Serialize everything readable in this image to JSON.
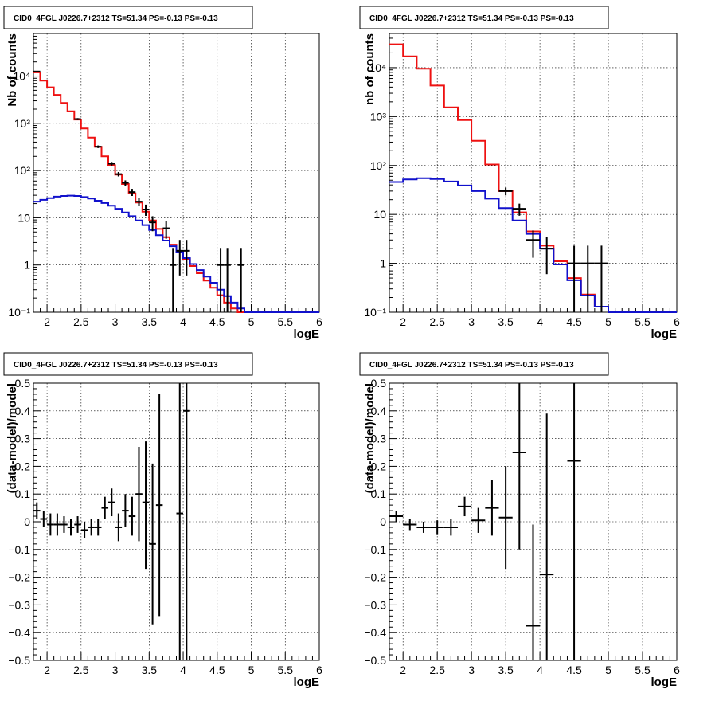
{
  "chart_data": [
    {
      "type": "histogram",
      "title": "CID0_4FGL J0226.7+2312 TS=51.34 PS=-0.13 PS=-0.13",
      "xlabel": "logE",
      "ylabel": "Nb of counts",
      "xlim": [
        1.8,
        6.0
      ],
      "ylim": [
        0.1,
        80000
      ],
      "yscale": "log",
      "grid": true,
      "x_ticks": [
        "2",
        "2.5",
        "3",
        "3.5",
        "4",
        "4.5",
        "5",
        "5.5",
        "6"
      ],
      "y_ticks": [
        "10⁻¹",
        "1",
        "10",
        "10²",
        "10³",
        "10⁴"
      ],
      "series": [
        {
          "color": "#ee1111",
          "style": "step",
          "bins": [
            [
              1.8,
              12000
            ],
            [
              1.9,
              8000
            ],
            [
              2.0,
              5800
            ],
            [
              2.1,
              4000
            ],
            [
              2.2,
              2700
            ],
            [
              2.3,
              1800
            ],
            [
              2.4,
              1200
            ],
            [
              2.5,
              780
            ],
            [
              2.6,
              500
            ],
            [
              2.7,
              320
            ],
            [
              2.8,
              200
            ],
            [
              2.9,
              130
            ],
            [
              3.0,
              82
            ],
            [
              3.1,
              52
            ],
            [
              3.2,
              33
            ],
            [
              3.3,
              21
            ],
            [
              3.4,
              13.5
            ],
            [
              3.5,
              8.8
            ],
            [
              3.6,
              5.8
            ],
            [
              3.7,
              3.9
            ],
            [
              3.8,
              2.7
            ],
            [
              3.9,
              1.9
            ],
            [
              4.0,
              1.35
            ],
            [
              4.1,
              0.95
            ],
            [
              4.2,
              0.67
            ],
            [
              4.3,
              0.47
            ],
            [
              4.4,
              0.33
            ],
            [
              4.5,
              0.23
            ],
            [
              4.6,
              0.16
            ],
            [
              4.7,
              0.12
            ],
            [
              4.8,
              0.1
            ],
            [
              4.9,
              0.1
            ],
            [
              6.0,
              0.1
            ]
          ]
        },
        {
          "color": "#1111cc",
          "style": "step",
          "bins": [
            [
              1.8,
              22
            ],
            [
              1.9,
              24
            ],
            [
              2.0,
              26
            ],
            [
              2.1,
              28
            ],
            [
              2.2,
              29
            ],
            [
              2.3,
              29.5
            ],
            [
              2.4,
              29
            ],
            [
              2.5,
              27.5
            ],
            [
              2.6,
              25.5
            ],
            [
              2.7,
              23
            ],
            [
              2.8,
              20.5
            ],
            [
              2.9,
              18
            ],
            [
              3.0,
              15.5
            ],
            [
              3.1,
              13
            ],
            [
              3.2,
              10.8
            ],
            [
              3.3,
              8.8
            ],
            [
              3.4,
              7
            ],
            [
              3.5,
              5.5
            ],
            [
              3.6,
              4.3
            ],
            [
              3.7,
              3.3
            ],
            [
              3.8,
              2.5
            ],
            [
              3.9,
              1.9
            ],
            [
              4.0,
              1.4
            ],
            [
              4.1,
              1.05
            ],
            [
              4.2,
              0.78
            ],
            [
              4.3,
              0.57
            ],
            [
              4.4,
              0.42
            ],
            [
              4.5,
              0.3
            ],
            [
              4.6,
              0.22
            ],
            [
              4.7,
              0.16
            ],
            [
              4.8,
              0.12
            ],
            [
              4.9,
              0.1
            ],
            [
              6.0,
              0.1
            ]
          ]
        },
        {
          "color": "#000000",
          "style": "points",
          "points": [
            {
              "x": 1.85,
              "y": 12500,
              "xerr": 0.05,
              "ylo": 12300,
              "yhi": 12700
            },
            {
              "x": 2.45,
              "y": 1230,
              "xerr": 0.05,
              "ylo": 1170,
              "yhi": 1290
            },
            {
              "x": 2.75,
              "y": 320,
              "xerr": 0.05,
              "ylo": 300,
              "yhi": 340
            },
            {
              "x": 2.95,
              "y": 140,
              "xerr": 0.05,
              "ylo": 128,
              "yhi": 152
            },
            {
              "x": 3.05,
              "y": 84,
              "xerr": 0.05,
              "ylo": 75,
              "yhi": 93
            },
            {
              "x": 3.15,
              "y": 55,
              "xerr": 0.05,
              "ylo": 48,
              "yhi": 62
            },
            {
              "x": 3.25,
              "y": 35,
              "xerr": 0.05,
              "ylo": 29,
              "yhi": 41
            },
            {
              "x": 3.35,
              "y": 22,
              "xerr": 0.05,
              "ylo": 17.5,
              "yhi": 26.5
            },
            {
              "x": 3.45,
              "y": 15,
              "xerr": 0.05,
              "ylo": 11,
              "yhi": 19
            },
            {
              "x": 3.55,
              "y": 8,
              "xerr": 0.05,
              "ylo": 5.2,
              "yhi": 10.8
            },
            {
              "x": 3.75,
              "y": 6,
              "xerr": 0.05,
              "ylo": 3.6,
              "yhi": 8.4
            },
            {
              "x": 3.85,
              "y": 1,
              "xerr": 0.05,
              "ylo": 0.1,
              "yhi": 2.3
            },
            {
              "x": 3.95,
              "y": 2,
              "xerr": 0.05,
              "ylo": 0.6,
              "yhi": 3.4
            },
            {
              "x": 4.05,
              "y": 2,
              "xerr": 0.05,
              "ylo": 0.6,
              "yhi": 3.4
            },
            {
              "x": 4.55,
              "y": 1,
              "xerr": 0.05,
              "ylo": 0.1,
              "yhi": 2.3
            },
            {
              "x": 4.65,
              "y": 1,
              "xerr": 0.05,
              "ylo": 0.1,
              "yhi": 2.3
            },
            {
              "x": 4.85,
              "y": 1,
              "xerr": 0.05,
              "ylo": 0.1,
              "yhi": 2.3
            }
          ]
        }
      ]
    },
    {
      "type": "histogram",
      "title": "CID0_4FGL J0226.7+2312 TS=51.34 PS=-0.13 PS=-0.13",
      "xlabel": "logE",
      "ylabel": "nb of counts",
      "xlim": [
        1.8,
        6.0
      ],
      "ylim": [
        0.1,
        50000
      ],
      "yscale": "log",
      "grid": true,
      "x_ticks": [
        "2",
        "2.5",
        "3",
        "3.5",
        "4",
        "4.5",
        "5",
        "5.5",
        "6"
      ],
      "y_ticks": [
        "10⁻¹",
        "1",
        "10",
        "10²",
        "10³",
        "10⁴"
      ],
      "series": [
        {
          "color": "#ee1111",
          "style": "step",
          "bins": [
            [
              1.8,
              30000
            ],
            [
              2.0,
              17000
            ],
            [
              2.2,
              9500
            ],
            [
              2.4,
              4300
            ],
            [
              2.6,
              1550
            ],
            [
              2.8,
              850
            ],
            [
              3.0,
              320
            ],
            [
              3.2,
              105
            ],
            [
              3.4,
              30
            ],
            [
              3.6,
              11
            ],
            [
              3.8,
              4.5
            ],
            [
              4.0,
              2.3
            ],
            [
              4.2,
              1.1
            ],
            [
              4.4,
              0.5
            ],
            [
              4.6,
              0.23
            ],
            [
              4.8,
              0.13
            ],
            [
              5.0,
              0.1
            ],
            [
              6.0,
              0.1
            ]
          ]
        },
        {
          "color": "#1111cc",
          "style": "step",
          "bins": [
            [
              1.8,
              46
            ],
            [
              2.0,
              52
            ],
            [
              2.2,
              55
            ],
            [
              2.4,
              53
            ],
            [
              2.6,
              47
            ],
            [
              2.8,
              39
            ],
            [
              3.0,
              30
            ],
            [
              3.2,
              21
            ],
            [
              3.4,
              13.5
            ],
            [
              3.6,
              7.5
            ],
            [
              3.8,
              4
            ],
            [
              4.0,
              2
            ],
            [
              4.2,
              0.95
            ],
            [
              4.4,
              0.45
            ],
            [
              4.6,
              0.22
            ],
            [
              4.8,
              0.13
            ],
            [
              5.0,
              0.1
            ],
            [
              6.0,
              0.1
            ]
          ]
        },
        {
          "color": "#000000",
          "style": "points",
          "points": [
            {
              "x": 3.5,
              "y": 30,
              "xerr": 0.1,
              "ylo": 24.5,
              "yhi": 35.5
            },
            {
              "x": 3.7,
              "y": 13,
              "xerr": 0.1,
              "ylo": 9.4,
              "yhi": 16.6
            },
            {
              "x": 3.9,
              "y": 3,
              "xerr": 0.1,
              "ylo": 1.3,
              "yhi": 4.7
            },
            {
              "x": 4.1,
              "y": 2,
              "xerr": 0.1,
              "ylo": 0.6,
              "yhi": 3.4
            },
            {
              "x": 4.5,
              "y": 1,
              "xerr": 0.1,
              "ylo": 0.1,
              "yhi": 2.3
            },
            {
              "x": 4.7,
              "y": 1,
              "xerr": 0.1,
              "ylo": 0.1,
              "yhi": 2.3
            },
            {
              "x": 4.9,
              "y": 1,
              "xerr": 0.1,
              "ylo": 0.1,
              "yhi": 2.3
            }
          ]
        }
      ]
    },
    {
      "type": "scatter",
      "title": "CID0_4FGL J0226.7+2312 TS=51.34 PS=-0.13 PS=-0.13",
      "xlabel": "logE",
      "ylabel": "(data-model)/model",
      "xlim": [
        1.8,
        6.0
      ],
      "ylim": [
        -0.5,
        0.5
      ],
      "grid": true,
      "x_ticks": [
        "2",
        "2.5",
        "3",
        "3.5",
        "4",
        "4.5",
        "5",
        "5.5",
        "6"
      ],
      "y_ticks": [
        "−0.5",
        "−0.4",
        "−0.3",
        "−0.2",
        "−0.1",
        "0",
        "0.1",
        "0.2",
        "0.3",
        "0.4",
        "0.5"
      ],
      "points": [
        {
          "x": 1.85,
          "y": 0.04,
          "xerr": 0.05,
          "ylo": 0.01,
          "yhi": 0.07
        },
        {
          "x": 1.95,
          "y": 0.01,
          "xerr": 0.05,
          "ylo": -0.02,
          "yhi": 0.04
        },
        {
          "x": 2.05,
          "y": -0.01,
          "xerr": 0.05,
          "ylo": -0.05,
          "yhi": 0.03
        },
        {
          "x": 2.15,
          "y": -0.01,
          "xerr": 0.05,
          "ylo": -0.05,
          "yhi": 0.03
        },
        {
          "x": 2.25,
          "y": -0.01,
          "xerr": 0.05,
          "ylo": -0.04,
          "yhi": 0.02
        },
        {
          "x": 2.35,
          "y": -0.02,
          "xerr": 0.05,
          "ylo": -0.05,
          "yhi": 0.01
        },
        {
          "x": 2.45,
          "y": -0.01,
          "xerr": 0.05,
          "ylo": -0.04,
          "yhi": 0.02
        },
        {
          "x": 2.55,
          "y": -0.03,
          "xerr": 0.05,
          "ylo": -0.06,
          "yhi": 0.0
        },
        {
          "x": 2.65,
          "y": -0.02,
          "xerr": 0.05,
          "ylo": -0.05,
          "yhi": 0.01
        },
        {
          "x": 2.75,
          "y": -0.02,
          "xerr": 0.05,
          "ylo": -0.05,
          "yhi": 0.01
        },
        {
          "x": 2.85,
          "y": 0.05,
          "xerr": 0.05,
          "ylo": 0.01,
          "yhi": 0.09
        },
        {
          "x": 2.95,
          "y": 0.07,
          "xerr": 0.05,
          "ylo": 0.02,
          "yhi": 0.12
        },
        {
          "x": 3.05,
          "y": -0.02,
          "xerr": 0.05,
          "ylo": -0.07,
          "yhi": 0.03
        },
        {
          "x": 3.15,
          "y": 0.04,
          "xerr": 0.05,
          "ylo": -0.02,
          "yhi": 0.1
        },
        {
          "x": 3.25,
          "y": 0.02,
          "xerr": 0.05,
          "ylo": -0.05,
          "yhi": 0.09
        },
        {
          "x": 3.35,
          "y": 0.1,
          "xerr": 0.05,
          "ylo": -0.07,
          "yhi": 0.27
        },
        {
          "x": 3.45,
          "y": 0.07,
          "xerr": 0.05,
          "ylo": -0.17,
          "yhi": 0.29
        },
        {
          "x": 3.55,
          "y": -0.08,
          "xerr": 0.05,
          "ylo": -0.37,
          "yhi": 0.21
        },
        {
          "x": 3.65,
          "y": 0.06,
          "xerr": 0.05,
          "ylo": -0.34,
          "yhi": 0.46
        },
        {
          "x": 3.95,
          "y": 0.03,
          "xerr": 0.05,
          "ylo": -0.5,
          "yhi": 0.5
        },
        {
          "x": 4.05,
          "y": 0.4,
          "xerr": 0.05,
          "ylo": -0.5,
          "yhi": 0.5
        }
      ]
    },
    {
      "type": "scatter",
      "title": "CID0_4FGL J0226.7+2312 TS=51.34 PS=-0.13 PS=-0.13",
      "xlabel": "logE",
      "ylabel": "(data-model)/model",
      "xlim": [
        1.8,
        6.0
      ],
      "ylim": [
        -0.5,
        0.5
      ],
      "grid": true,
      "x_ticks": [
        "2",
        "2.5",
        "3",
        "3.5",
        "4",
        "4.5",
        "5",
        "5.5",
        "6"
      ],
      "y_ticks": [
        "−0.5",
        "−0.4",
        "−0.3",
        "−0.2",
        "−0.1",
        "0",
        "0.1",
        "0.2",
        "0.3",
        "0.4",
        "0.5"
      ],
      "points": [
        {
          "x": 1.9,
          "y": 0.02,
          "xerr": 0.1,
          "ylo": 0.0,
          "yhi": 0.04
        },
        {
          "x": 2.1,
          "y": -0.01,
          "xerr": 0.1,
          "ylo": -0.03,
          "yhi": 0.01
        },
        {
          "x": 2.3,
          "y": -0.02,
          "xerr": 0.1,
          "ylo": -0.04,
          "yhi": 0.0
        },
        {
          "x": 2.5,
          "y": -0.02,
          "xerr": 0.1,
          "ylo": -0.045,
          "yhi": 0.005
        },
        {
          "x": 2.7,
          "y": -0.02,
          "xerr": 0.1,
          "ylo": -0.05,
          "yhi": 0.01
        },
        {
          "x": 2.9,
          "y": 0.055,
          "xerr": 0.1,
          "ylo": 0.02,
          "yhi": 0.09
        },
        {
          "x": 3.1,
          "y": 0.005,
          "xerr": 0.1,
          "ylo": -0.04,
          "yhi": 0.05
        },
        {
          "x": 3.3,
          "y": 0.05,
          "xerr": 0.1,
          "ylo": -0.05,
          "yhi": 0.15
        },
        {
          "x": 3.5,
          "y": 0.015,
          "xerr": 0.1,
          "ylo": -0.17,
          "yhi": 0.2
        },
        {
          "x": 3.7,
          "y": 0.25,
          "xerr": 0.1,
          "ylo": -0.1,
          "yhi": 0.5
        },
        {
          "x": 3.9,
          "y": -0.375,
          "xerr": 0.1,
          "ylo": -0.5,
          "yhi": -0.01
        },
        {
          "x": 4.1,
          "y": -0.19,
          "xerr": 0.1,
          "ylo": -0.5,
          "yhi": 0.39
        },
        {
          "x": 4.5,
          "y": 0.22,
          "xerr": 0.1,
          "ylo": -0.5,
          "yhi": 0.5
        }
      ]
    }
  ]
}
